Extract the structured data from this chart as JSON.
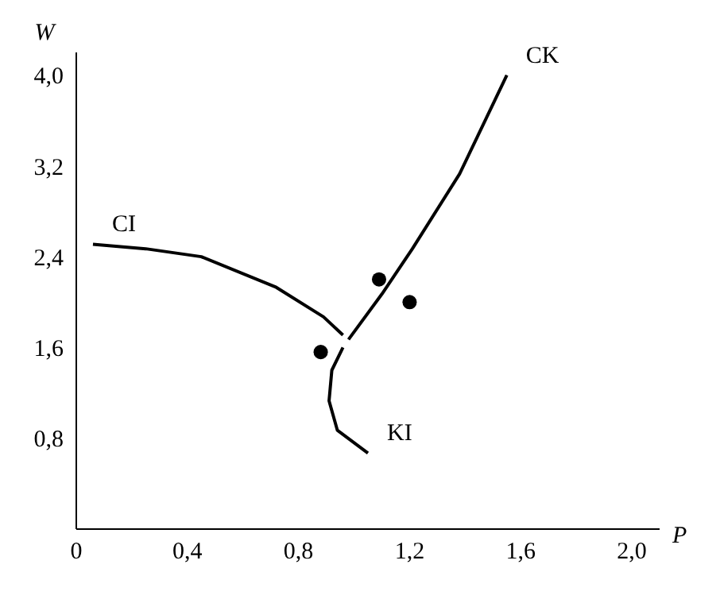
{
  "chart_data": {
    "type": "line",
    "xlabel": "P",
    "ylabel": "W",
    "xlim": [
      0,
      2.1
    ],
    "ylim": [
      0,
      4.2
    ],
    "xticks": [
      0,
      {
        "value": 0.4,
        "label": "0,4"
      },
      {
        "value": 0.8,
        "label": "0,8"
      },
      {
        "value": 1.2,
        "label": "1,2"
      },
      {
        "value": 1.6,
        "label": "1,6"
      },
      {
        "value": 2.0,
        "label": "2,0"
      }
    ],
    "yticks": [
      {
        "value": 0.8,
        "label": "0,8"
      },
      {
        "value": 1.6,
        "label": "1,6"
      },
      {
        "value": 2.4,
        "label": "2,4"
      },
      {
        "value": 3.2,
        "label": "3,2"
      },
      {
        "value": 4.0,
        "label": "4,0"
      }
    ],
    "grid": false,
    "legend": false,
    "marker": "none",
    "line_style": "solid",
    "series": [
      {
        "name": "CI",
        "color": "#000000",
        "x": [
          0.96,
          0.89,
          0.72,
          0.45,
          0.25,
          0.06
        ],
        "values": [
          1.71,
          1.87,
          2.13,
          2.4,
          2.47,
          2.51
        ]
      },
      {
        "name": "CK",
        "color": "#000000",
        "x": [
          0.98,
          1.1,
          1.21,
          1.38,
          1.55
        ],
        "values": [
          1.67,
          2.07,
          2.47,
          3.13,
          4.0
        ]
      },
      {
        "name": "KI",
        "color": "#000000",
        "x": [
          0.96,
          0.92,
          0.91,
          0.94,
          1.05
        ],
        "values": [
          1.6,
          1.4,
          1.13,
          0.87,
          0.67
        ]
      },
      {
        "type": "scatter",
        "marker": "circle",
        "color": "#000000",
        "x": [
          0.88,
          1.09,
          1.2
        ],
        "values": [
          1.56,
          2.2,
          2.0
        ]
      }
    ]
  }
}
